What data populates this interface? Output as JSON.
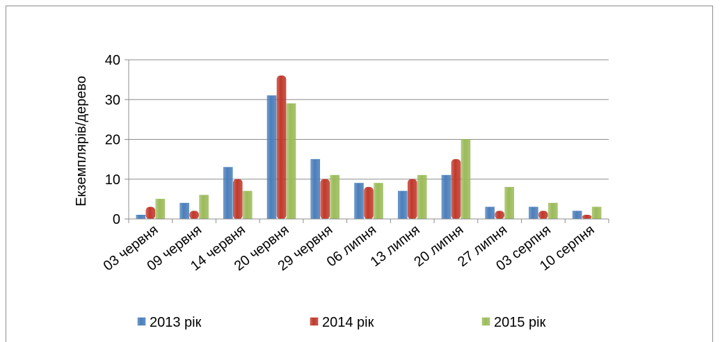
{
  "chart_data": {
    "type": "bar",
    "title": "",
    "xlabel": "",
    "ylabel": "Екземплярів/дерево",
    "ylim": [
      0,
      40
    ],
    "yticks": [
      0,
      10,
      20,
      30,
      40
    ],
    "grid": true,
    "legend_position": "bottom",
    "categories": [
      "03 червня",
      "09 червня",
      "14 червня",
      "20 червня",
      "29 червня",
      "06 липня",
      "13 липня",
      "20 липня",
      "27 липня",
      "03 серпня",
      "10 серпня"
    ],
    "series": [
      {
        "name": "2013 рік",
        "color": "#4a7ebb",
        "values": [
          1,
          4,
          13,
          31,
          15,
          9,
          7,
          11,
          3,
          3,
          2
        ]
      },
      {
        "name": "2014 рік",
        "color": "#c0392b",
        "values": [
          3,
          2,
          10,
          36,
          10,
          8,
          10,
          15,
          2,
          2,
          1
        ]
      },
      {
        "name": "2015 рік",
        "color": "#9bbb59",
        "values": [
          5,
          6,
          7,
          29,
          11,
          9,
          11,
          20,
          8,
          4,
          3
        ]
      }
    ]
  }
}
